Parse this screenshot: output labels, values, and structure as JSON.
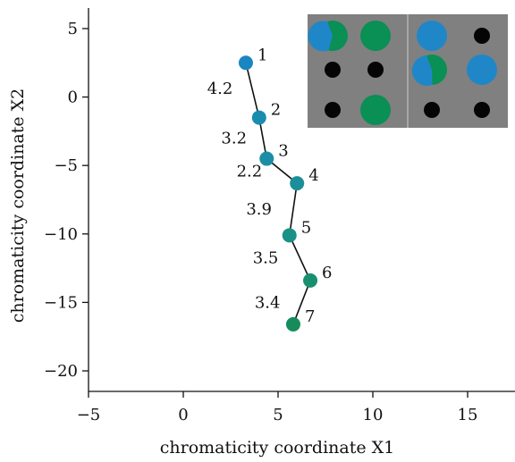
{
  "chart_data": {
    "type": "scatter",
    "title": "",
    "xlabel": "chromaticity coordinate X1",
    "ylabel": "chromaticity coordinate X2",
    "xlim": [
      -5,
      17.5
    ],
    "ylim": [
      -21.5,
      6.5
    ],
    "xticks": [
      -5,
      0,
      5,
      10,
      15
    ],
    "yticks": [
      5,
      0,
      -5,
      -10,
      -15,
      -20
    ],
    "xtick_labels": [
      "−5",
      "0",
      "5",
      "10",
      "15"
    ],
    "ytick_labels": [
      "5",
      "0",
      "−5",
      "−10",
      "−15",
      "−20"
    ],
    "grid": false,
    "connected": true,
    "points": [
      {
        "label": "1",
        "x": 3.3,
        "y": 2.5,
        "color": "#1a86c0"
      },
      {
        "label": "2",
        "x": 4.0,
        "y": -1.5,
        "color": "#1a8cb0"
      },
      {
        "label": "3",
        "x": 4.4,
        "y": -4.5,
        "color": "#1b8ea6"
      },
      {
        "label": "4",
        "x": 6.0,
        "y": -6.3,
        "color": "#1a8f9a"
      },
      {
        "label": "5",
        "x": 5.6,
        "y": -10.1,
        "color": "#1a9186"
      },
      {
        "label": "6",
        "x": 6.7,
        "y": -13.4,
        "color": "#18906f"
      },
      {
        "label": "7",
        "x": 5.8,
        "y": -16.6,
        "color": "#168c5c"
      }
    ],
    "segment_labels": [
      "4.2",
      "3.2",
      "2.2",
      "3.9",
      "3.5",
      "3.4"
    ],
    "inset": {
      "background": "#808080",
      "divider_color": "#bfbfbf",
      "panels": [
        {
          "dots": [
            {
              "kind": "pie",
              "size": "large",
              "blue_fraction": 0.6
            },
            {
              "kind": "solid",
              "size": "large",
              "color": "#0a8f55"
            },
            {
              "kind": "solid",
              "size": "small",
              "color": "#050505"
            },
            {
              "kind": "solid",
              "size": "small",
              "color": "#050505"
            },
            {
              "kind": "solid",
              "size": "small",
              "color": "#050505"
            },
            {
              "kind": "solid",
              "size": "large",
              "color": "#0a8f55"
            }
          ]
        },
        {
          "dots": [
            {
              "kind": "solid",
              "size": "large",
              "color": "#1f87c8"
            },
            {
              "kind": "solid",
              "size": "small",
              "color": "#050505"
            },
            {
              "kind": "pie",
              "size": "large",
              "blue_fraction": 0.55
            },
            {
              "kind": "solid",
              "size": "large",
              "color": "#1f87c8"
            },
            {
              "kind": "solid",
              "size": "small",
              "color": "#050505"
            },
            {
              "kind": "solid",
              "size": "small",
              "color": "#050505"
            }
          ]
        }
      ]
    }
  }
}
